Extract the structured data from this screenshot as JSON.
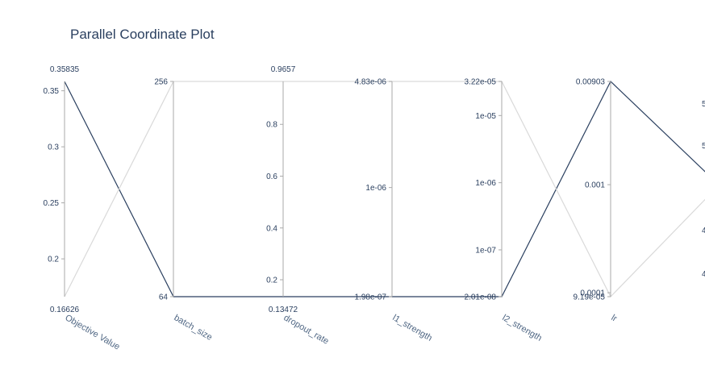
{
  "chart_data": {
    "type": "parallel_coordinates",
    "title": "Parallel Coordinate Plot",
    "dimensions": [
      {
        "label": "Objective Value",
        "scale": "linear",
        "range": [
          0.16626,
          0.35835
        ],
        "range_labels": [
          "0.35835",
          "0.16626"
        ],
        "ticks": [
          {
            "value": 0.35,
            "label": "0.35"
          },
          {
            "value": 0.3,
            "label": "0.3"
          },
          {
            "value": 0.25,
            "label": "0.25"
          },
          {
            "value": 0.2,
            "label": "0.2"
          }
        ]
      },
      {
        "label": "batch_size",
        "scale": "log",
        "range": [
          64,
          256
        ],
        "range_labels": [],
        "ticks": [
          {
            "value": 256,
            "label": "256"
          },
          {
            "value": 64,
            "label": "64"
          }
        ]
      },
      {
        "label": "dropout_rate",
        "scale": "linear",
        "range": [
          0.13472,
          0.9657
        ],
        "range_labels": [
          "0.9657",
          "0.13472"
        ],
        "ticks": [
          {
            "value": 0.8,
            "label": "0.8"
          },
          {
            "value": 0.6,
            "label": "0.6"
          },
          {
            "value": 0.4,
            "label": "0.4"
          },
          {
            "value": 0.2,
            "label": "0.2"
          }
        ]
      },
      {
        "label": "l1_strength",
        "scale": "log",
        "range": [
          1.98e-07,
          4.83e-06
        ],
        "range_labels": [],
        "ticks": [
          {
            "value": 4.83e-06,
            "label": "4.83e-06"
          },
          {
            "value": 1e-06,
            "label": "1e-06"
          },
          {
            "value": 1.98e-07,
            "label": "1.98e-07"
          }
        ]
      },
      {
        "label": "l2_strength",
        "scale": "log",
        "range": [
          2.01e-08,
          3.22e-05
        ],
        "range_labels": [],
        "ticks": [
          {
            "value": 3.22e-05,
            "label": "3.22e-05"
          },
          {
            "value": 1e-05,
            "label": "1e-05"
          },
          {
            "value": 1e-06,
            "label": "1e-06"
          },
          {
            "value": 1e-07,
            "label": "1e-07"
          },
          {
            "value": 2.01e-08,
            "label": "2.01e-08"
          }
        ]
      },
      {
        "label": "lr",
        "scale": "log",
        "range": [
          9.19e-05,
          0.00903
        ],
        "range_labels": [],
        "ticks": [
          {
            "value": 0.00903,
            "label": "0.00903"
          },
          {
            "value": 0.001,
            "label": "0.001"
          },
          {
            "value": 0.0001,
            "label": "0.0001"
          },
          {
            "value": 9.19e-05,
            "label": "9.19e-05"
          }
        ]
      }
    ],
    "cut_off_axis_tick_labels": [
      "5",
      "5",
      "4",
      "4"
    ],
    "lines": [
      {
        "color": "#2a3f5f",
        "values": [
          0.35835,
          64,
          0.13472,
          1.98e-07,
          2.01e-08,
          0.00903
        ]
      },
      {
        "color": "#d9d9d9",
        "values": [
          0.16626,
          256,
          0.9657,
          4.83e-06,
          3.22e-05,
          9.19e-05
        ]
      }
    ]
  }
}
